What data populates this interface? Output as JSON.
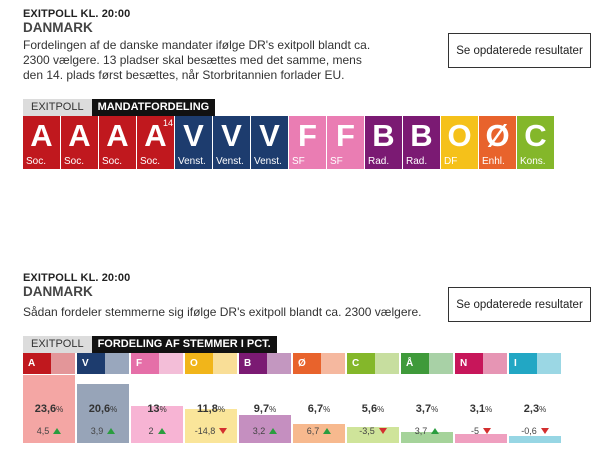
{
  "section1": {
    "overline": "EXITPOLL KL. 20:00",
    "country": "DANMARK",
    "desc_lines": [
      "Fordelingen af de danske mandater ifølge DR's exitpoll blandt ca.",
      "2300 vælgere. 13 pladser skal besættes med det samme, mens",
      "den 14. plads først besættes, når Storbritannien forlader EU."
    ],
    "button": "Se opdaterede resultater",
    "tab_exit": "EXITPOLL",
    "tab_title": "MANDATFORDELING",
    "seats": [
      {
        "letter": "A",
        "party": "Soc.",
        "color": "#c0181e",
        "mark": ""
      },
      {
        "letter": "A",
        "party": "Soc.",
        "color": "#c0181e",
        "mark": ""
      },
      {
        "letter": "A",
        "party": "Soc.",
        "color": "#c0181e",
        "mark": ""
      },
      {
        "letter": "A",
        "party": "Soc.",
        "color": "#c0181e",
        "mark": "14"
      },
      {
        "letter": "V",
        "party": "Venst.",
        "color": "#1d3c6e",
        "mark": ""
      },
      {
        "letter": "V",
        "party": "Venst.",
        "color": "#1d3c6e",
        "mark": ""
      },
      {
        "letter": "V",
        "party": "Venst.",
        "color": "#1d3c6e",
        "mark": ""
      },
      {
        "letter": "F",
        "party": "SF",
        "color": "#ea7db3",
        "mark": ""
      },
      {
        "letter": "F",
        "party": "SF",
        "color": "#ea7db3",
        "mark": ""
      },
      {
        "letter": "B",
        "party": "Rad.",
        "color": "#7b1a73",
        "mark": ""
      },
      {
        "letter": "B",
        "party": "Rad.",
        "color": "#7b1a73",
        "mark": ""
      },
      {
        "letter": "O",
        "party": "DF",
        "color": "#f5c11a",
        "mark": ""
      },
      {
        "letter": "Ø",
        "party": "Enhl.",
        "color": "#e8632c",
        "mark": ""
      },
      {
        "letter": "C",
        "party": "Kons.",
        "color": "#84b72a",
        "mark": ""
      }
    ]
  },
  "section2": {
    "overline": "EXITPOLL KL. 20:00",
    "country": "DANMARK",
    "desc": "Sådan fordeler stemmerne sig ifølge DR's exitpoll blandt ca. 2300 vælgere.",
    "button": "Se opdaterede resultater",
    "tab_exit": "EXITPOLL",
    "tab_title": "FORDELING AF STEMMER I PCT.",
    "parties": [
      {
        "letter": "A",
        "color": "#c0181e",
        "light": "#f4a6a4",
        "pct_whole": "23,6",
        "pct_sign": "%",
        "pct": 23.6,
        "change": "4,5",
        "dir": "up"
      },
      {
        "letter": "V",
        "color": "#1d3c6e",
        "light": "#97a4b8",
        "pct_whole": "20,6",
        "pct_sign": "%",
        "pct": 20.6,
        "change": "3,9",
        "dir": "up"
      },
      {
        "letter": "F",
        "color": "#e56fa8",
        "light": "#f7b4d4",
        "pct_whole": "13",
        "pct_sign": "%",
        "pct": 13.0,
        "change": "2",
        "dir": "up"
      },
      {
        "letter": "O",
        "color": "#f1b51a",
        "light": "#fae59a",
        "pct_whole": "11,8",
        "pct_sign": "%",
        "pct": 11.8,
        "change": "-14,8",
        "dir": "down"
      },
      {
        "letter": "B",
        "color": "#7b1a73",
        "light": "#c58fc0",
        "pct_whole": "9,7",
        "pct_sign": "%",
        "pct": 9.7,
        "change": "3,2",
        "dir": "up"
      },
      {
        "letter": "Ø",
        "color": "#e8632c",
        "light": "#f7b98e",
        "pct_whole": "6,7",
        "pct_sign": "%",
        "pct": 6.7,
        "change": "6,7",
        "dir": "up"
      },
      {
        "letter": "C",
        "color": "#84b72a",
        "light": "#cfe49a",
        "pct_whole": "5,6",
        "pct_sign": "%",
        "pct": 5.6,
        "change": "-3,5",
        "dir": "down"
      },
      {
        "letter": "Å",
        "color": "#3f9a3a",
        "light": "#a5d39a",
        "pct_whole": "3,7",
        "pct_sign": "%",
        "pct": 3.7,
        "change": "3,7",
        "dir": "up"
      },
      {
        "letter": "N",
        "color": "#c7165a",
        "light": "#ef9fbf",
        "pct_whole": "3,1",
        "pct_sign": "%",
        "pct": 3.1,
        "change": "-5",
        "dir": "down"
      },
      {
        "letter": "I",
        "color": "#22a7c4",
        "light": "#97d6e4",
        "pct_whole": "2,3",
        "pct_sign": "%",
        "pct": 2.3,
        "change": "-0,6",
        "dir": "down"
      }
    ]
  }
}
